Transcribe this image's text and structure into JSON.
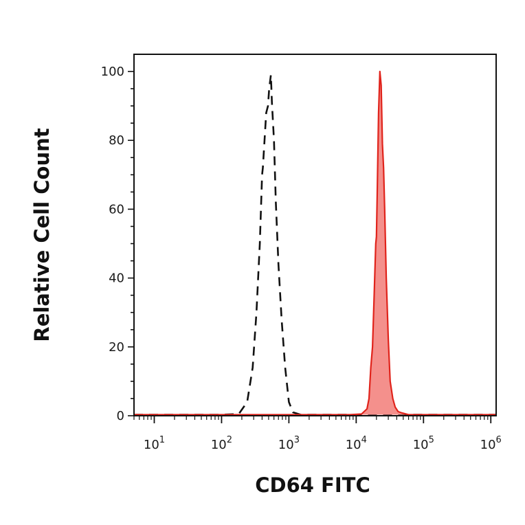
{
  "chart_data": {
    "type": "area",
    "title": "",
    "xlabel": "CD64 FITC",
    "ylabel": "Relative Cell Count",
    "x_scale": "log",
    "xlim": [
      5,
      1200000
    ],
    "ylim": [
      0,
      105
    ],
    "y_ticks": [
      0,
      20,
      40,
      60,
      80,
      100
    ],
    "x_ticks": [
      {
        "base": "10",
        "exp": "1",
        "value": 10
      },
      {
        "base": "10",
        "exp": "2",
        "value": 100
      },
      {
        "base": "10",
        "exp": "3",
        "value": 1000
      },
      {
        "base": "10",
        "exp": "4",
        "value": 10000
      },
      {
        "base": "10",
        "exp": "5",
        "value": 100000
      },
      {
        "base": "10",
        "exp": "6",
        "value": 1000000
      }
    ],
    "grid": false,
    "series": [
      {
        "style": "dashed-outline",
        "color": "#111111",
        "x": [
          5,
          100,
          180,
          240,
          290,
          330,
          370,
          400,
          410,
          460,
          490,
          510,
          540,
          560,
          600,
          640,
          700,
          780,
          880,
          1000,
          1150,
          1500,
          3000,
          10000,
          100000,
          1200000
        ],
        "y": [
          0,
          0,
          0.5,
          4,
          14,
          30,
          50,
          70,
          72,
          88,
          90,
          95,
          99,
          91,
          80,
          62,
          44,
          28,
          14,
          4,
          1,
          0.3,
          0,
          0,
          0,
          0
        ]
      },
      {
        "style": "filled",
        "color": "#e0231b",
        "fill": "#f4908c",
        "x": [
          5,
          8000,
          12000,
          14500,
          15500,
          16500,
          17500,
          18500,
          19500,
          20000,
          20500,
          21500,
          22500,
          23500,
          24500,
          25500,
          26500,
          28000,
          30000,
          32000,
          35000,
          38000,
          42000,
          48000,
          60000,
          100000,
          1200000
        ],
        "y": [
          0,
          0,
          0.5,
          2,
          5,
          14,
          20,
          35,
          50,
          52,
          64,
          88,
          100,
          96,
          79,
          72,
          60,
          40,
          22,
          10,
          5,
          2.5,
          1.2,
          0.8,
          0.3,
          0,
          0
        ]
      }
    ]
  }
}
